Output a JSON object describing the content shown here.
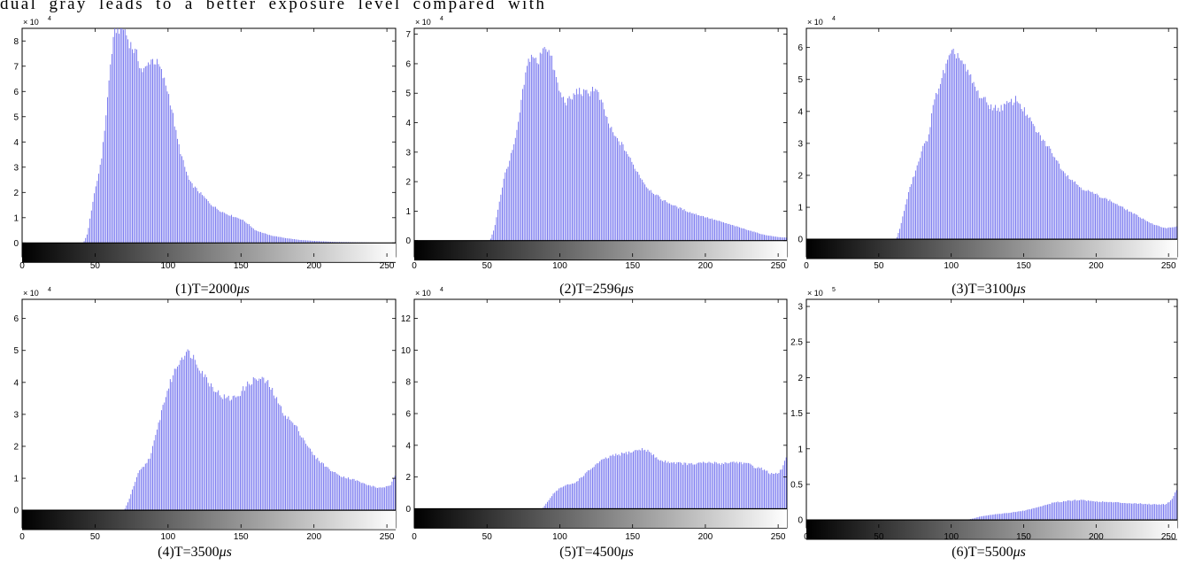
{
  "header_text": "dual gray leads to a better exposure level compared with",
  "chart_data": [
    {
      "type": "bar",
      "caption_prefix": "(1)T=2000",
      "caption_unit": "μs",
      "multiplier": "× 10",
      "exponent": "4",
      "xlim": [
        0,
        256
      ],
      "ylim": [
        -0.55,
        8.5
      ],
      "x_ticks": [
        0,
        50,
        100,
        150,
        200,
        250
      ],
      "y_ticks": [
        0,
        1,
        2,
        3,
        4,
        5,
        6,
        7,
        8
      ],
      "y_tick_labels": [
        "0",
        "1",
        "2",
        "3",
        "4",
        "5",
        "6",
        "7",
        "8"
      ],
      "bar_color": "#6f6fee",
      "profile": [
        [
          0,
          0
        ],
        [
          42,
          0
        ],
        [
          45,
          0.4
        ],
        [
          48,
          1.5
        ],
        [
          52,
          2.6
        ],
        [
          55,
          3.6
        ],
        [
          58,
          5.4
        ],
        [
          61,
          7.4
        ],
        [
          64,
          8.5
        ],
        [
          67,
          8.5
        ],
        [
          70,
          8.5
        ],
        [
          73,
          8.0
        ],
        [
          76,
          7.7
        ],
        [
          79,
          7.4
        ],
        [
          82,
          6.8
        ],
        [
          85,
          6.9
        ],
        [
          88,
          7.3
        ],
        [
          91,
          7.2
        ],
        [
          94,
          7.0
        ],
        [
          97,
          6.5
        ],
        [
          100,
          6.0
        ],
        [
          103,
          5.2
        ],
        [
          106,
          4.2
        ],
        [
          109,
          3.5
        ],
        [
          112,
          2.9
        ],
        [
          115,
          2.4
        ],
        [
          120,
          2.1
        ],
        [
          125,
          1.8
        ],
        [
          130,
          1.5
        ],
        [
          135,
          1.3
        ],
        [
          140,
          1.15
        ],
        [
          145,
          1.05
        ],
        [
          150,
          0.95
        ],
        [
          155,
          0.75
        ],
        [
          160,
          0.5
        ],
        [
          170,
          0.3
        ],
        [
          180,
          0.2
        ],
        [
          190,
          0.12
        ],
        [
          200,
          0.08
        ],
        [
          215,
          0.04
        ],
        [
          235,
          0.02
        ],
        [
          256,
          0
        ]
      ]
    },
    {
      "type": "bar",
      "caption_prefix": "(2)T=2596",
      "caption_unit": "μs",
      "multiplier": "× 10",
      "exponent": "4",
      "xlim": [
        0,
        256
      ],
      "ylim": [
        -0.55,
        7.2
      ],
      "x_ticks": [
        0,
        50,
        100,
        150,
        200,
        250
      ],
      "y_ticks": [
        0,
        1,
        2,
        3,
        4,
        5,
        6,
        7
      ],
      "y_tick_labels": [
        "0",
        "1",
        "2",
        "3",
        "4",
        "5",
        "6",
        "7"
      ],
      "bar_color": "#6f6fee",
      "profile": [
        [
          0,
          0
        ],
        [
          52,
          0
        ],
        [
          55,
          0.4
        ],
        [
          58,
          1.2
        ],
        [
          62,
          2.2
        ],
        [
          66,
          2.8
        ],
        [
          70,
          3.5
        ],
        [
          73,
          4.5
        ],
        [
          76,
          5.5
        ],
        [
          79,
          6.2
        ],
        [
          82,
          6.3
        ],
        [
          85,
          5.9
        ],
        [
          88,
          6.6
        ],
        [
          91,
          6.6
        ],
        [
          94,
          6.2
        ],
        [
          97,
          5.6
        ],
        [
          100,
          5.0
        ],
        [
          104,
          4.7
        ],
        [
          108,
          4.8
        ],
        [
          112,
          5.1
        ],
        [
          116,
          5.0
        ],
        [
          120,
          5.0
        ],
        [
          123,
          5.2
        ],
        [
          126,
          5.0
        ],
        [
          130,
          4.5
        ],
        [
          134,
          3.9
        ],
        [
          138,
          3.5
        ],
        [
          142,
          3.3
        ],
        [
          146,
          3.0
        ],
        [
          150,
          2.6
        ],
        [
          155,
          2.2
        ],
        [
          160,
          1.8
        ],
        [
          165,
          1.6
        ],
        [
          170,
          1.4
        ],
        [
          180,
          1.15
        ],
        [
          190,
          0.95
        ],
        [
          200,
          0.8
        ],
        [
          210,
          0.65
        ],
        [
          220,
          0.5
        ],
        [
          230,
          0.35
        ],
        [
          240,
          0.2
        ],
        [
          250,
          0.12
        ],
        [
          256,
          0.1
        ]
      ]
    },
    {
      "type": "bar",
      "caption_prefix": "(3)T=3100",
      "caption_unit": "μs",
      "multiplier": "× 10",
      "exponent": "4",
      "xlim": [
        0,
        256
      ],
      "ylim": [
        -0.55,
        6.6
      ],
      "x_ticks": [
        0,
        50,
        100,
        150,
        200,
        250
      ],
      "y_ticks": [
        0,
        1,
        2,
        3,
        4,
        5,
        6
      ],
      "y_tick_labels": [
        "0",
        "1",
        "2",
        "3",
        "4",
        "5",
        "6"
      ],
      "bar_color": "#6f6fee",
      "profile": [
        [
          0,
          0
        ],
        [
          62,
          0
        ],
        [
          65,
          0.4
        ],
        [
          68,
          1.0
        ],
        [
          72,
          1.7
        ],
        [
          76,
          2.2
        ],
        [
          80,
          2.8
        ],
        [
          84,
          3.2
        ],
        [
          87,
          4.0
        ],
        [
          90,
          4.6
        ],
        [
          94,
          5.1
        ],
        [
          98,
          5.6
        ],
        [
          101,
          5.8
        ],
        [
          104,
          5.8
        ],
        [
          107,
          5.6
        ],
        [
          110,
          5.3
        ],
        [
          114,
          5.0
        ],
        [
          118,
          4.6
        ],
        [
          122,
          4.4
        ],
        [
          126,
          4.2
        ],
        [
          130,
          4.1
        ],
        [
          134,
          4.1
        ],
        [
          138,
          4.2
        ],
        [
          142,
          4.3
        ],
        [
          145,
          4.4
        ],
        [
          148,
          4.2
        ],
        [
          152,
          3.9
        ],
        [
          156,
          3.6
        ],
        [
          160,
          3.3
        ],
        [
          165,
          3.0
        ],
        [
          170,
          2.7
        ],
        [
          175,
          2.3
        ],
        [
          180,
          2.0
        ],
        [
          185,
          1.8
        ],
        [
          190,
          1.6
        ],
        [
          200,
          1.4
        ],
        [
          210,
          1.2
        ],
        [
          220,
          0.95
        ],
        [
          230,
          0.7
        ],
        [
          240,
          0.45
        ],
        [
          248,
          0.35
        ],
        [
          256,
          0.4
        ]
      ]
    },
    {
      "type": "bar",
      "caption_prefix": "(4)T=3500",
      "caption_unit": "μs",
      "multiplier": "× 10",
      "exponent": "4",
      "xlim": [
        0,
        256
      ],
      "ylim": [
        -0.55,
        6.6
      ],
      "x_ticks": [
        0,
        50,
        100,
        150,
        200,
        250
      ],
      "y_ticks": [
        0,
        1,
        2,
        3,
        4,
        5,
        6
      ],
      "y_tick_labels": [
        "0",
        "1",
        "2",
        "3",
        "4",
        "5",
        "6"
      ],
      "bar_color": "#6f6fee",
      "profile": [
        [
          0,
          0
        ],
        [
          70,
          0
        ],
        [
          73,
          0.3
        ],
        [
          76,
          0.7
        ],
        [
          80,
          1.2
        ],
        [
          84,
          1.4
        ],
        [
          88,
          1.7
        ],
        [
          92,
          2.4
        ],
        [
          96,
          3.2
        ],
        [
          100,
          3.8
        ],
        [
          104,
          4.3
        ],
        [
          108,
          4.7
        ],
        [
          112,
          4.95
        ],
        [
          116,
          4.9
        ],
        [
          120,
          4.6
        ],
        [
          124,
          4.3
        ],
        [
          128,
          4.0
        ],
        [
          132,
          3.8
        ],
        [
          136,
          3.6
        ],
        [
          140,
          3.5
        ],
        [
          144,
          3.5
        ],
        [
          148,
          3.6
        ],
        [
          152,
          3.8
        ],
        [
          156,
          4.0
        ],
        [
          160,
          4.1
        ],
        [
          164,
          4.1
        ],
        [
          168,
          4.0
        ],
        [
          172,
          3.7
        ],
        [
          176,
          3.3
        ],
        [
          180,
          3.0
        ],
        [
          184,
          2.8
        ],
        [
          188,
          2.6
        ],
        [
          192,
          2.3
        ],
        [
          196,
          2.0
        ],
        [
          200,
          1.7
        ],
        [
          205,
          1.5
        ],
        [
          210,
          1.3
        ],
        [
          215,
          1.15
        ],
        [
          220,
          1.05
        ],
        [
          228,
          0.95
        ],
        [
          236,
          0.8
        ],
        [
          244,
          0.7
        ],
        [
          252,
          0.75
        ],
        [
          256,
          1.1
        ]
      ]
    },
    {
      "type": "bar",
      "caption_prefix": "(5)T=4500",
      "caption_unit": "μs",
      "multiplier": "× 10",
      "exponent": "4",
      "xlim": [
        0,
        256
      ],
      "ylim": [
        -1.2,
        13.2
      ],
      "x_ticks": [
        0,
        50,
        100,
        150,
        200,
        250
      ],
      "y_ticks": [
        0,
        2,
        4,
        6,
        8,
        10,
        12
      ],
      "y_tick_labels": [
        "0",
        "2",
        "4",
        "6",
        "8",
        "10",
        "12"
      ],
      "bar_color": "#6f6fee",
      "profile": [
        [
          0,
          0
        ],
        [
          88,
          0
        ],
        [
          92,
          0.5
        ],
        [
          96,
          1.0
        ],
        [
          100,
          1.3
        ],
        [
          105,
          1.5
        ],
        [
          110,
          1.6
        ],
        [
          115,
          2.0
        ],
        [
          120,
          2.4
        ],
        [
          125,
          2.8
        ],
        [
          130,
          3.1
        ],
        [
          135,
          3.3
        ],
        [
          140,
          3.4
        ],
        [
          145,
          3.5
        ],
        [
          150,
          3.6
        ],
        [
          155,
          3.75
        ],
        [
          160,
          3.7
        ],
        [
          165,
          3.3
        ],
        [
          170,
          3.0
        ],
        [
          175,
          2.95
        ],
        [
          180,
          2.9
        ],
        [
          185,
          2.85
        ],
        [
          190,
          2.8
        ],
        [
          195,
          2.85
        ],
        [
          200,
          2.9
        ],
        [
          205,
          2.9
        ],
        [
          210,
          2.85
        ],
        [
          215,
          2.9
        ],
        [
          220,
          2.95
        ],
        [
          225,
          2.9
        ],
        [
          230,
          2.8
        ],
        [
          235,
          2.6
        ],
        [
          240,
          2.5
        ],
        [
          245,
          2.2
        ],
        [
          250,
          2.2
        ],
        [
          253,
          2.6
        ],
        [
          256,
          3.4
        ]
      ]
    },
    {
      "type": "bar",
      "caption_prefix": "(6)T=5500",
      "caption_unit": "μs",
      "multiplier": "× 10",
      "exponent": "5",
      "xlim": [
        0,
        256
      ],
      "ylim": [
        -0.11,
        3.1
      ],
      "x_ticks": [
        0,
        50,
        100,
        150,
        200,
        250
      ],
      "y_ticks": [
        0,
        0.5,
        1,
        1.5,
        2,
        2.5,
        3
      ],
      "y_tick_labels": [
        "0",
        "0.5",
        "1",
        "1.5",
        "2",
        "2.5",
        "3"
      ],
      "bar_color": "#6f6fee",
      "profile": [
        [
          0,
          0
        ],
        [
          110,
          0
        ],
        [
          115,
          0.02
        ],
        [
          120,
          0.05
        ],
        [
          130,
          0.08
        ],
        [
          140,
          0.1
        ],
        [
          150,
          0.13
        ],
        [
          160,
          0.18
        ],
        [
          170,
          0.24
        ],
        [
          180,
          0.27
        ],
        [
          185,
          0.28
        ],
        [
          190,
          0.28
        ],
        [
          200,
          0.26
        ],
        [
          210,
          0.25
        ],
        [
          220,
          0.24
        ],
        [
          230,
          0.23
        ],
        [
          240,
          0.22
        ],
        [
          248,
          0.22
        ],
        [
          252,
          0.28
        ],
        [
          256,
          0.45
        ]
      ]
    }
  ]
}
